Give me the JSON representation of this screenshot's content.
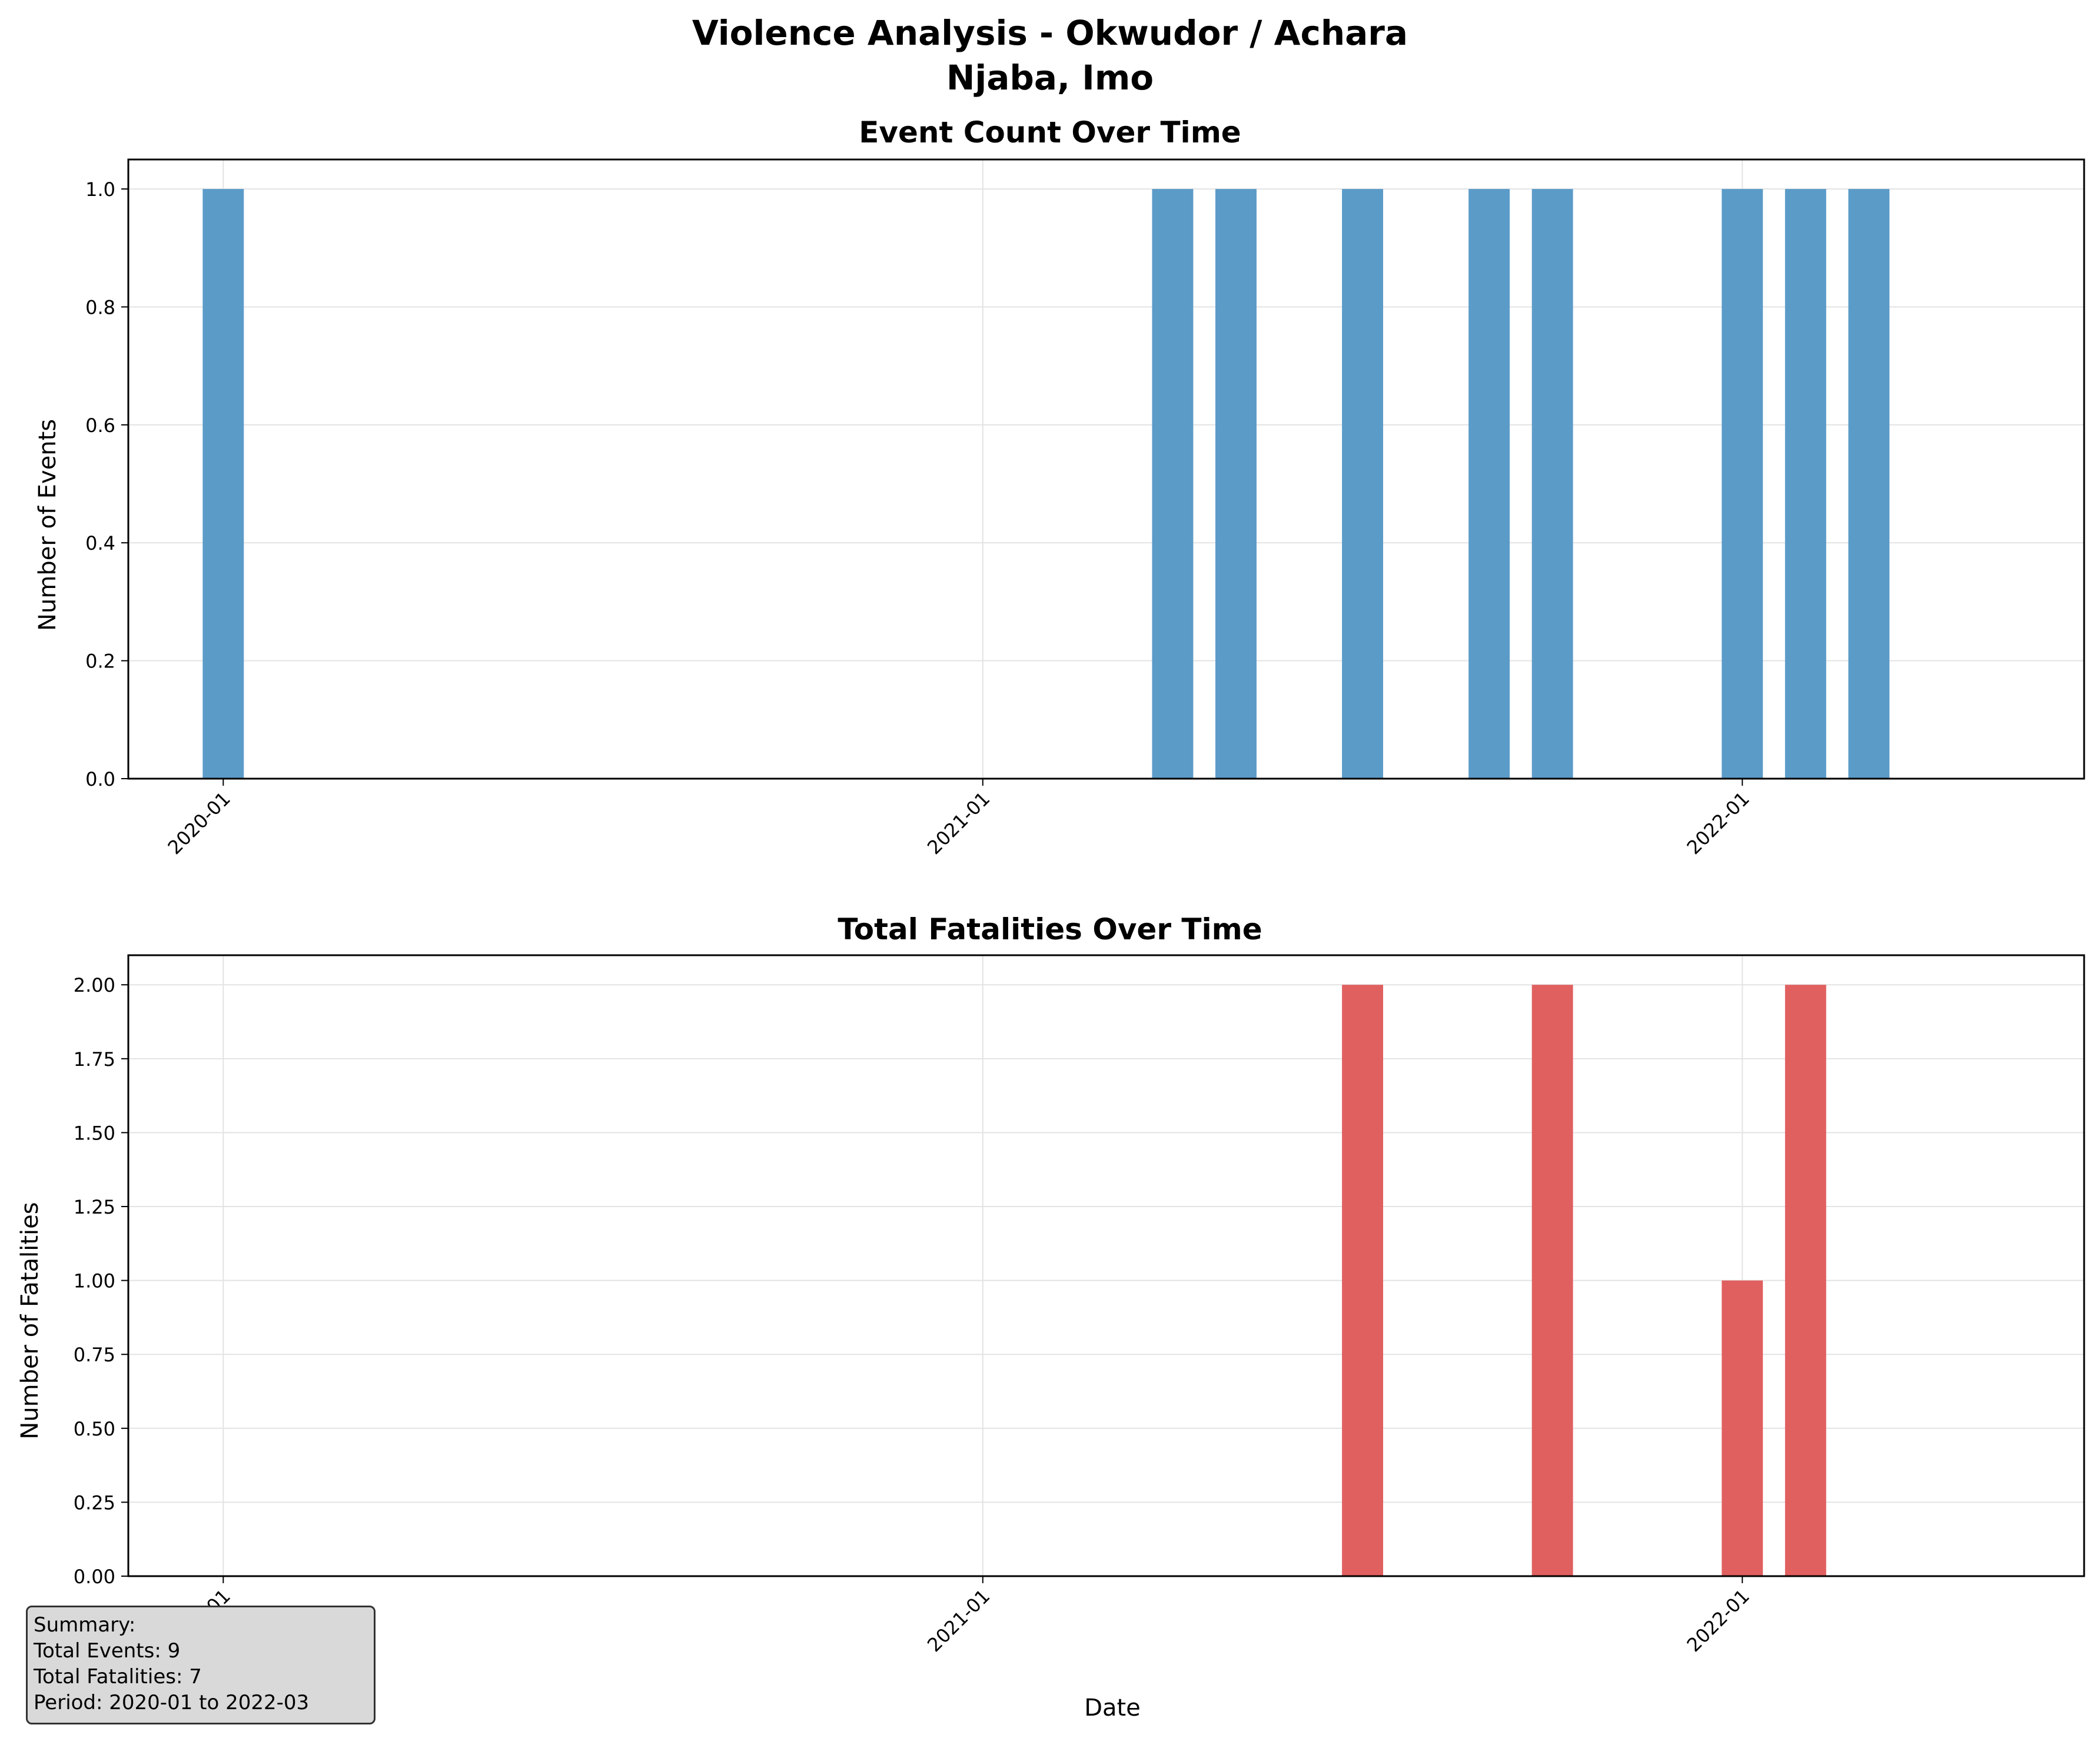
{
  "title_line1": "Violence Analysis - Okwudor / Achara",
  "title_line2": "Njaba, Imo",
  "colors": {
    "events_bar": "#5b9bc8",
    "fatalities_bar": "#e06060",
    "grid": "#e3e3e3",
    "axis": "#000000"
  },
  "summary": {
    "heading": "Summary:",
    "events_line": "Total Events: 9",
    "fatalities_line": "Total Fatalities: 7",
    "period_line": "Period: 2020-01 to 2022-03"
  },
  "chart_data": [
    {
      "type": "bar",
      "title": "Event Count Over Time",
      "xlabel": "",
      "ylabel": "Number of Events",
      "x_type": "date",
      "xlim": [
        "2019-11",
        "2022-06"
      ],
      "xticks": [
        "2020-01",
        "2021-01",
        "2022-01"
      ],
      "ylim": [
        0,
        1.05
      ],
      "yticks": [
        "0.0",
        "0.2",
        "0.4",
        "0.6",
        "0.8",
        "1.0"
      ],
      "grid": true,
      "categories": [
        "2020-01",
        "2021-04",
        "2021-05",
        "2021-07",
        "2021-09",
        "2021-10",
        "2022-01",
        "2022-02",
        "2022-03"
      ],
      "values": [
        1,
        1,
        1,
        1,
        1,
        1,
        1,
        1,
        1
      ]
    },
    {
      "type": "bar",
      "title": "Total Fatalities Over Time",
      "xlabel": "Date",
      "ylabel": "Number of Fatalities",
      "x_type": "date",
      "xlim": [
        "2019-11",
        "2022-06"
      ],
      "xticks": [
        "2020-01",
        "2021-01",
        "2022-01"
      ],
      "ylim": [
        0,
        2.1
      ],
      "yticks": [
        "0.00",
        "0.25",
        "0.50",
        "0.75",
        "1.00",
        "1.25",
        "1.50",
        "1.75",
        "2.00"
      ],
      "grid": true,
      "categories": [
        "2020-01",
        "2021-04",
        "2021-05",
        "2021-07",
        "2021-09",
        "2021-10",
        "2022-01",
        "2022-02",
        "2022-03"
      ],
      "values": [
        0,
        0,
        0,
        2,
        0,
        2,
        1,
        2,
        0
      ]
    }
  ]
}
